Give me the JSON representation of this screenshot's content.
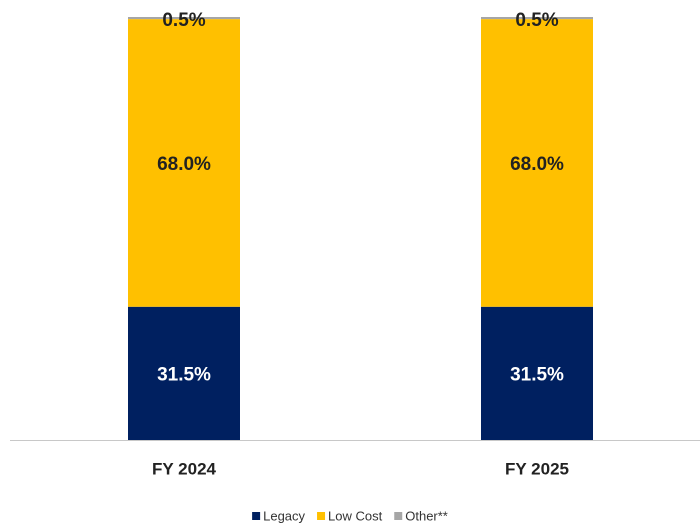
{
  "chart_data": {
    "type": "stacked_bar",
    "categories": [
      "FY 2024",
      "FY 2025"
    ],
    "series": [
      {
        "name": "Legacy",
        "color": "#002060",
        "values": [
          31.5,
          31.5
        ],
        "value_labels": [
          "31.5%",
          "31.5%"
        ]
      },
      {
        "name": "Low Cost",
        "color": "#ffc000",
        "values": [
          68.0,
          68.0
        ],
        "value_labels": [
          "68.0%",
          "68.0%"
        ]
      },
      {
        "name": "Other**",
        "color": "#a6a6a6",
        "values": [
          0.5,
          0.5
        ],
        "value_labels": [
          "0.5%",
          "0.5%"
        ]
      }
    ],
    "ylim": [
      0,
      100
    ],
    "legend": "bottom"
  }
}
